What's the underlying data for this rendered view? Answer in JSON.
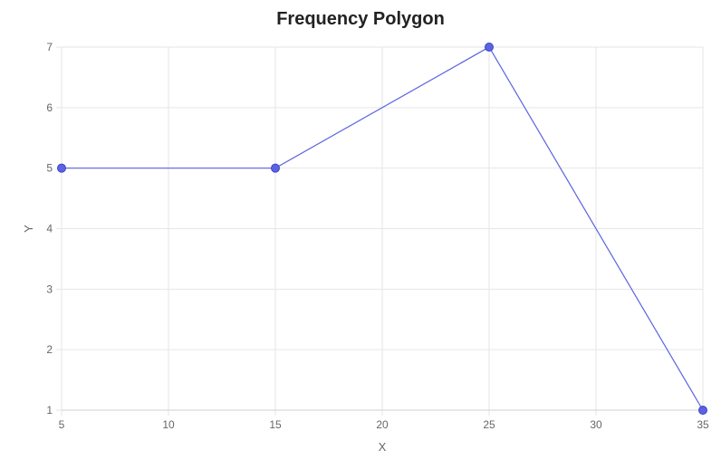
{
  "chart_data": {
    "type": "line",
    "title": "Frequency Polygon",
    "xlabel": "X",
    "ylabel": "Y",
    "xlim": [
      5,
      35
    ],
    "ylim": [
      1,
      7
    ],
    "x_ticks": [
      5,
      10,
      15,
      20,
      25,
      30,
      35
    ],
    "y_ticks": [
      1,
      2,
      3,
      4,
      5,
      6,
      7
    ],
    "grid": true,
    "series": [
      {
        "color": "#5b63e0",
        "points": [
          {
            "x": 5,
            "y": 5
          },
          {
            "x": 15,
            "y": 5
          },
          {
            "x": 25,
            "y": 7
          },
          {
            "x": 35,
            "y": 1
          }
        ]
      }
    ]
  }
}
